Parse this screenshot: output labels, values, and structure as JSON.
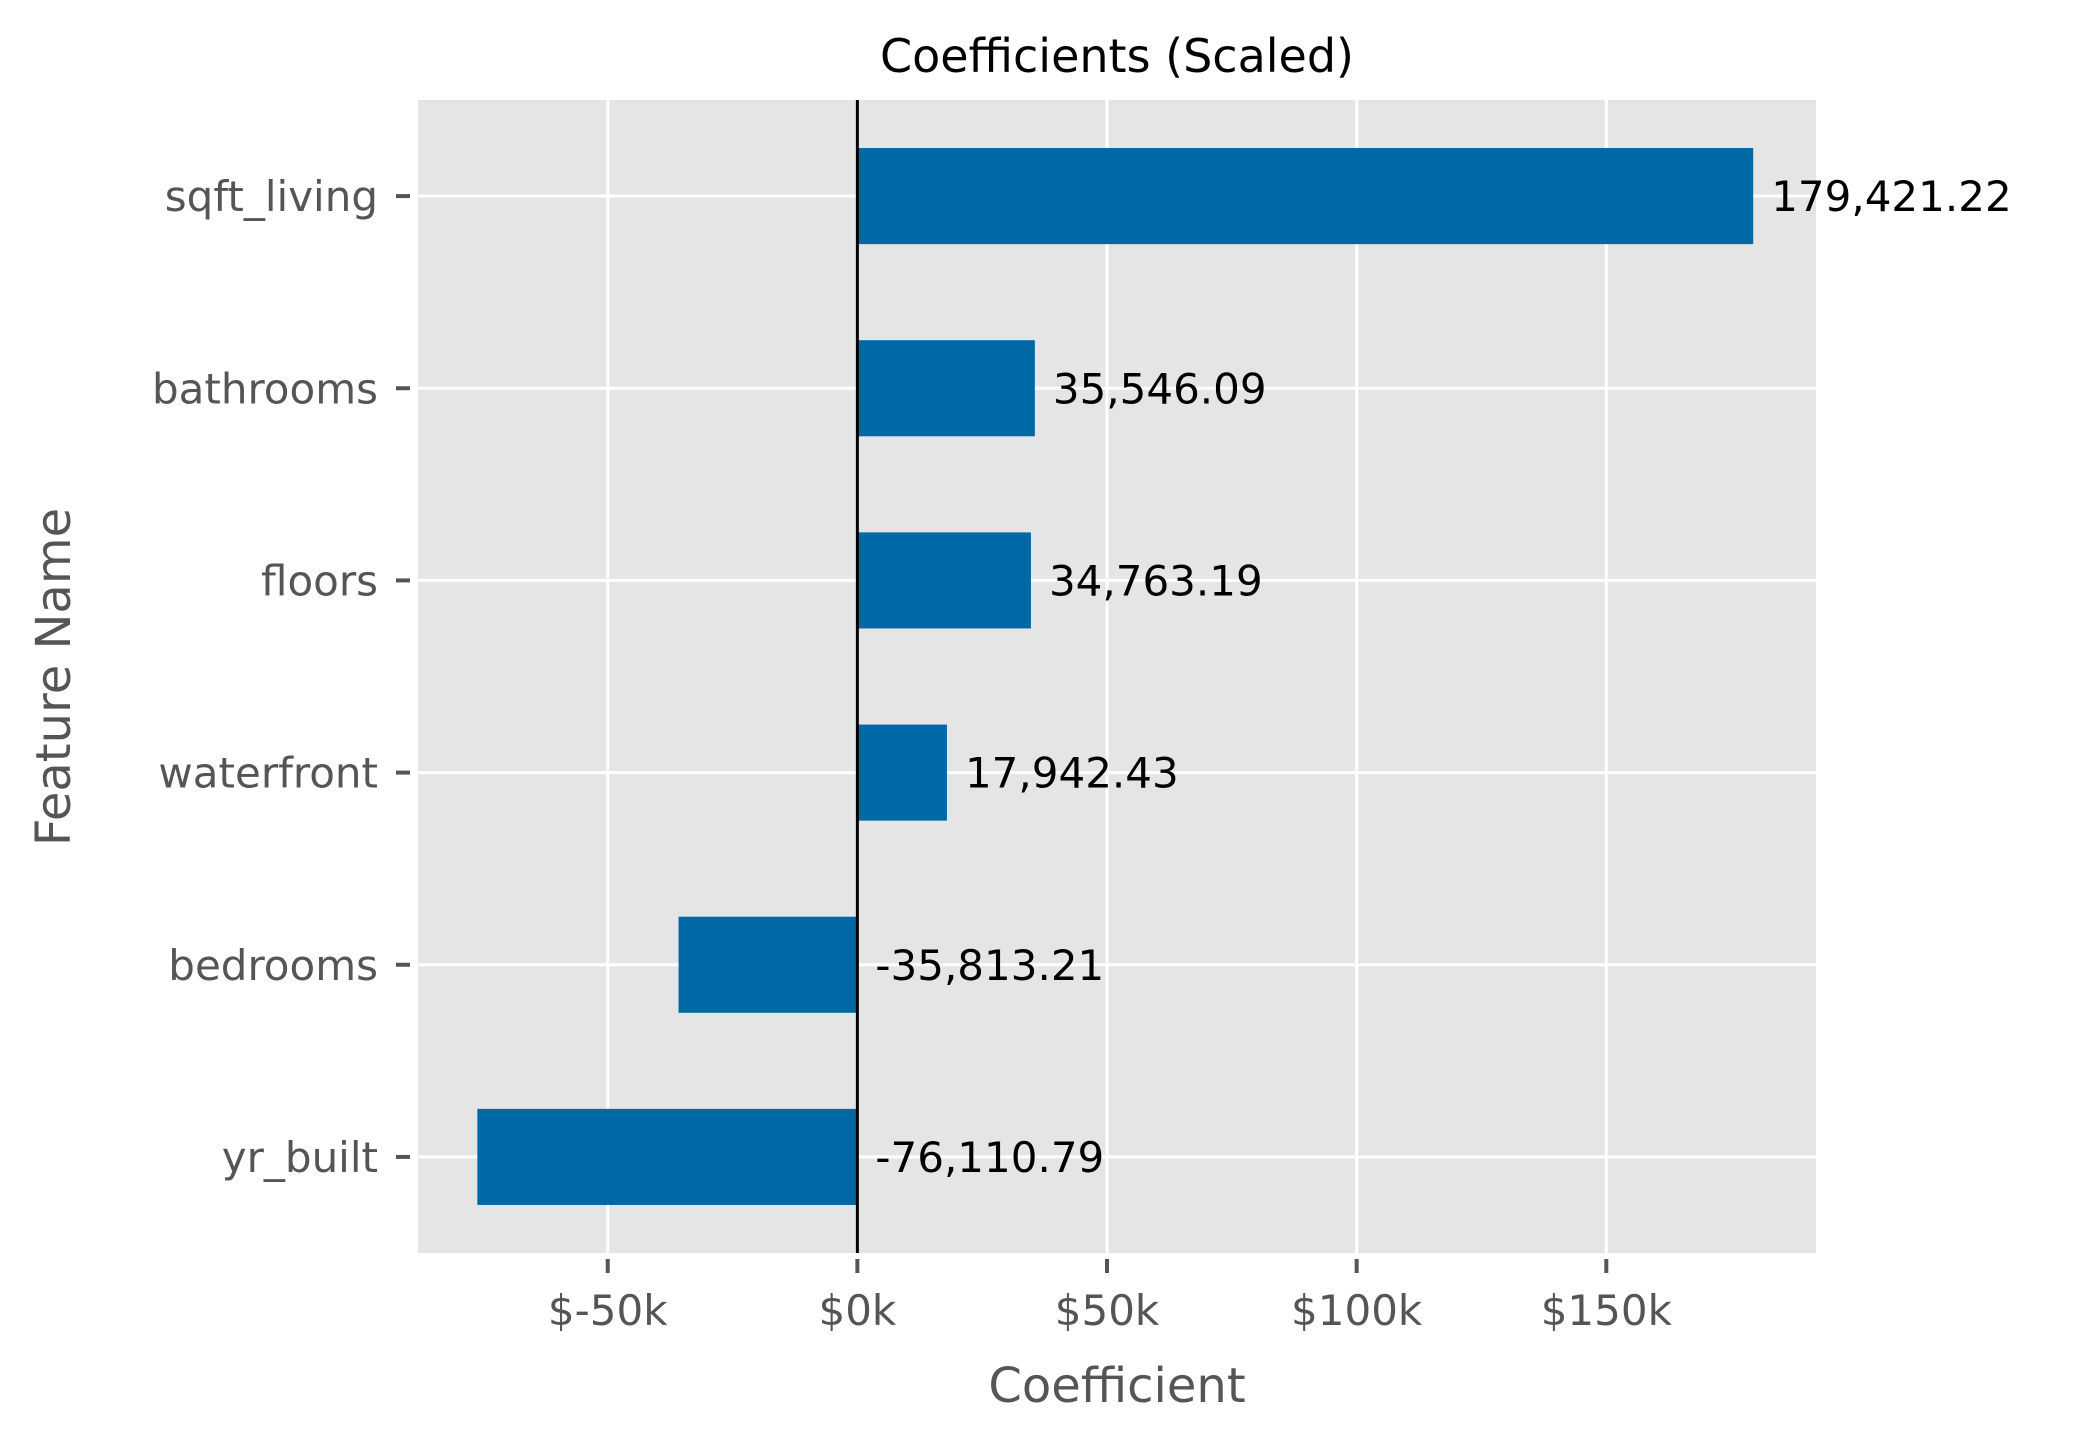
{
  "chart_data": {
    "type": "bar",
    "orientation": "horizontal",
    "title": "Coefficients (Scaled)",
    "xlabel": "Coefficient",
    "ylabel": "Feature Name",
    "categories": [
      "sqft_living",
      "bathrooms",
      "floors",
      "waterfront",
      "bedrooms",
      "yr_built"
    ],
    "values": [
      179421.22,
      35546.09,
      34763.19,
      17942.43,
      -35813.21,
      -76110.79
    ],
    "data_labels": [
      "179,421.22",
      "35,546.09",
      "34,763.19",
      "17,942.43",
      "-35,813.21",
      "-76,110.79"
    ],
    "x_ticks": [
      -50000,
      0,
      50000,
      100000,
      150000
    ],
    "x_tick_labels": [
      "$-50k",
      "$0k",
      "$50k",
      "$100k",
      "$150k"
    ],
    "xlim": [
      -88000,
      192000
    ],
    "zero_line": true,
    "grid": true,
    "colors": {
      "bar": "#0069a5",
      "plot_background": "#e5e5e5",
      "grid": "#ffffff",
      "zero_line": "#000000"
    }
  }
}
